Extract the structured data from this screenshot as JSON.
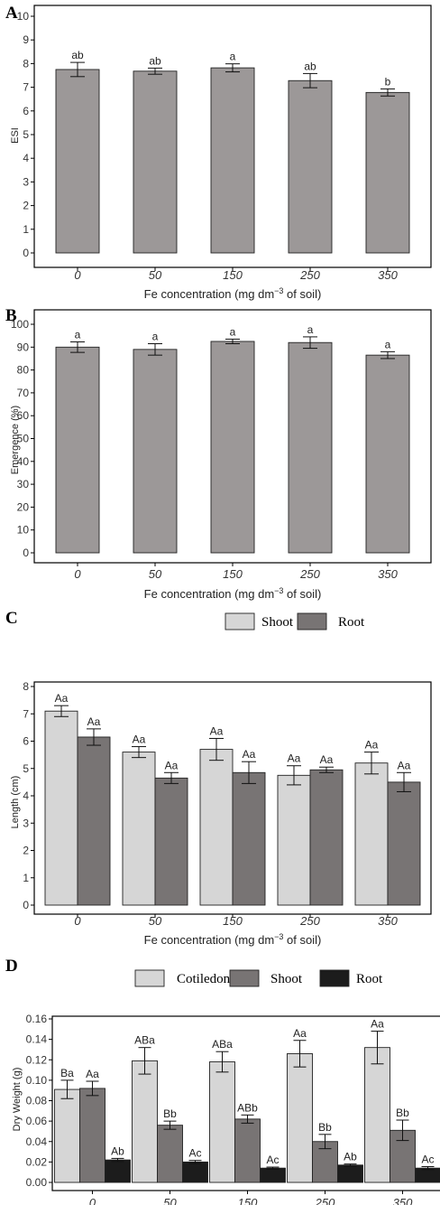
{
  "chart_data": [
    {
      "panel": "A",
      "type": "bar",
      "xlabel_prefix": "Fe concentration (mg dm",
      "xlabel_sup": "−3",
      "xlabel_suffix": " of soil)",
      "ylabel": "ESI",
      "categories": [
        "0",
        "50",
        "150",
        "250",
        "350"
      ],
      "ylim": [
        0,
        10
      ],
      "yticks": [
        0,
        1,
        2,
        3,
        4,
        5,
        6,
        7,
        8,
        9,
        10
      ],
      "series": [
        {
          "values": [
            7.75,
            7.68,
            7.82,
            7.28,
            6.78
          ],
          "errors": [
            0.3,
            0.13,
            0.17,
            0.3,
            0.15
          ],
          "labels": [
            "ab",
            "ab",
            "a",
            "ab",
            "b"
          ],
          "color": "#9c9898"
        }
      ]
    },
    {
      "panel": "B",
      "type": "bar",
      "xlabel_prefix": "Fe concentration (mg dm",
      "xlabel_sup": "−3",
      "xlabel_suffix": " of soil)",
      "ylabel": "Emergence (%)",
      "categories": [
        "0",
        "50",
        "150",
        "250",
        "350"
      ],
      "ylim": [
        0,
        100
      ],
      "yticks": [
        0,
        10,
        20,
        30,
        40,
        50,
        60,
        70,
        80,
        90,
        100
      ],
      "series": [
        {
          "values": [
            90,
            89,
            92.5,
            92,
            86.5
          ],
          "errors": [
            2.3,
            2.5,
            1.0,
            2.5,
            1.5
          ],
          "labels": [
            "a",
            "a",
            "a",
            "a",
            "a"
          ],
          "color": "#9c9898"
        }
      ]
    },
    {
      "panel": "C",
      "type": "bar",
      "xlabel_prefix": "Fe concentration (mg dm",
      "xlabel_sup": "−3",
      "xlabel_suffix": " of soil)",
      "ylabel": "Length (cm)",
      "categories": [
        "0",
        "50",
        "150",
        "250",
        "350"
      ],
      "ylim": [
        0,
        8
      ],
      "yticks": [
        0,
        1,
        2,
        3,
        4,
        5,
        6,
        7,
        8
      ],
      "series": [
        {
          "name": "Shoot",
          "values": [
            7.1,
            5.6,
            5.7,
            4.75,
            5.2
          ],
          "errors": [
            0.2,
            0.2,
            0.4,
            0.35,
            0.4
          ],
          "labels": [
            "Aa",
            "Aa",
            "Aa",
            "Aa",
            "Aa"
          ],
          "color": "#d6d6d6"
        },
        {
          "name": "Root",
          "values": [
            6.15,
            4.65,
            4.85,
            4.95,
            4.5
          ],
          "errors": [
            0.3,
            0.2,
            0.4,
            0.1,
            0.35
          ],
          "labels": [
            "Aa",
            "Aa",
            "Aa",
            "Aa",
            "Aa"
          ],
          "color": "#787474"
        }
      ]
    },
    {
      "panel": "D",
      "type": "bar",
      "xlabel_prefix": "Fe concentration (mg dm",
      "xlabel_sup": "−3",
      "xlabel_suffix": " of soil)",
      "ylabel": "Dry Weight (g)",
      "categories": [
        "0",
        "50",
        "150",
        "250",
        "350"
      ],
      "ylim": [
        0,
        0.16
      ],
      "yticks": [
        0.0,
        0.02,
        0.04,
        0.06,
        0.08,
        0.1,
        0.12,
        0.14,
        0.16
      ],
      "series": [
        {
          "name": "Cotiledons",
          "values": [
            0.091,
            0.119,
            0.118,
            0.126,
            0.132
          ],
          "errors": [
            0.009,
            0.013,
            0.01,
            0.013,
            0.016
          ],
          "labels": [
            "Ba",
            "ABa",
            "ABa",
            "Aa",
            "Aa"
          ],
          "color": "#d6d6d6"
        },
        {
          "name": "Shoot",
          "values": [
            0.092,
            0.056,
            0.062,
            0.04,
            0.051
          ],
          "errors": [
            0.007,
            0.004,
            0.004,
            0.007,
            0.01
          ],
          "labels": [
            "Aa",
            "Bb",
            "ABb",
            "Bb",
            "Bb"
          ],
          "color": "#787474"
        },
        {
          "name": "Root",
          "values": [
            0.022,
            0.02,
            0.014,
            0.017,
            0.014
          ],
          "errors": [
            0.0015,
            0.0015,
            0.001,
            0.001,
            0.0015
          ],
          "labels": [
            "Ab",
            "Ac",
            "Ac",
            "Ab",
            "Ac"
          ],
          "color": "#1c1c1c"
        }
      ]
    }
  ]
}
